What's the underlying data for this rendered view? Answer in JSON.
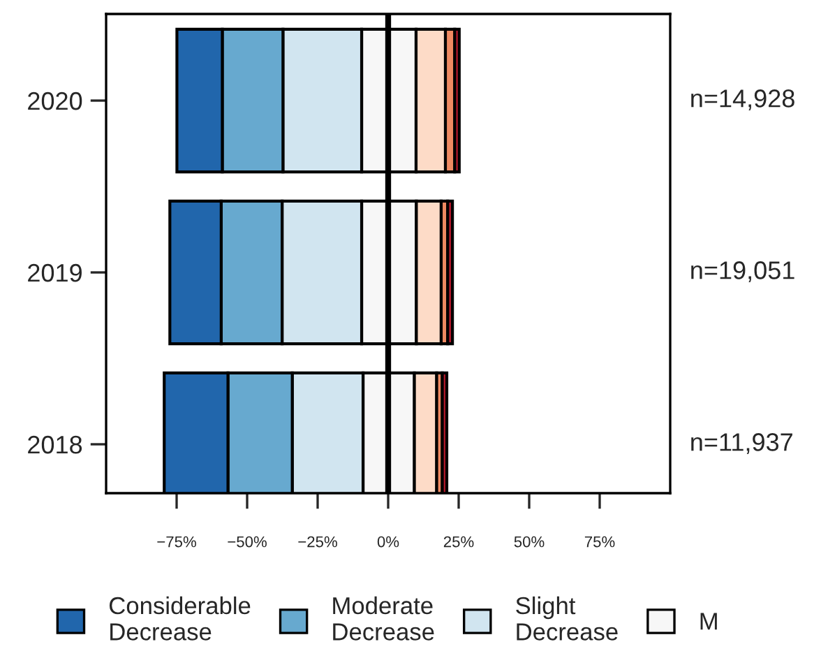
{
  "chart_data": {
    "type": "bar",
    "orientation": "horizontal",
    "stacked": true,
    "categories": [
      "2020",
      "2019",
      "2018"
    ],
    "series": [
      {
        "name": "M",
        "color": "#f7f7f7",
        "values": [
          -9.4,
          -9.4,
          -8.9
        ]
      },
      {
        "name": "Slight\nDecrease",
        "color": "#d1e5f0",
        "values": [
          -27.9,
          -28.2,
          -25.1
        ]
      },
      {
        "name": "Moderate\nDecrease",
        "color": "#67a9cf",
        "values": [
          -21.5,
          -21.6,
          -22.8
        ]
      },
      {
        "name": "Considerable\nDecrease",
        "color": "#2166ac",
        "values": [
          -16.1,
          -18.2,
          -22.6
        ]
      },
      {
        "color": "#f7f7f7",
        "values": [
          9.9,
          10.0,
          9.3
        ]
      },
      {
        "color": "#fddbc7",
        "values": [
          10.4,
          8.8,
          7.9
        ]
      },
      {
        "color": "#ef8a62",
        "values": [
          3.3,
          2.3,
          2.0
        ]
      },
      {
        "color": "#b2182b",
        "values": [
          1.6,
          1.7,
          1.6
        ]
      }
    ],
    "xlim": [
      -100,
      100
    ],
    "xticks": [
      {
        "value": -75,
        "label": "−75%"
      },
      {
        "value": -50,
        "label": "−50%"
      },
      {
        "value": -25,
        "label": "−25%"
      },
      {
        "value": 0,
        "label": "0%"
      },
      {
        "value": 25,
        "label": "25%"
      },
      {
        "value": 50,
        "label": "50%"
      },
      {
        "value": 75,
        "label": "75%"
      }
    ],
    "ref_lines": [
      {
        "axis": "x",
        "value": 0,
        "color": "#000000"
      }
    ],
    "annotations": [
      "n=14,928",
      "n=19,051",
      "n=11,937"
    ],
    "grid": false,
    "legend": "bottom"
  }
}
